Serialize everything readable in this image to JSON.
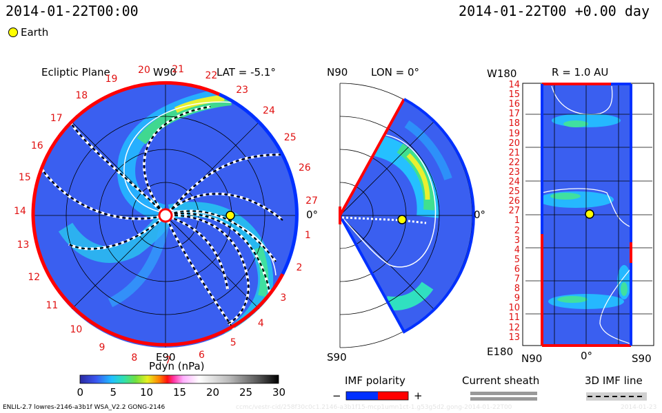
{
  "header": {
    "left_timestamp": "2014-01-22T00:00",
    "right_timestamp": "2014-01-22T00 +0.00 day",
    "earth_label": "Earth"
  },
  "ecliptic": {
    "title": "Ecliptic Plane",
    "top_label": "W90",
    "lat_label": "LAT = -5.1°",
    "angle_label": "0°",
    "bottom_label": "E90",
    "rotation_numbers": [
      "1",
      "2",
      "3",
      "4",
      "5",
      "6",
      "7",
      "8",
      "9",
      "10",
      "11",
      "12",
      "13",
      "14",
      "15",
      "16",
      "17",
      "18",
      "19",
      "20",
      "21",
      "22",
      "23",
      "24",
      "25",
      "26",
      "27"
    ]
  },
  "meridional": {
    "top_label": "N90",
    "lon_label": "LON = 0°",
    "angle_label": "0°",
    "bottom_label": "S90"
  },
  "map": {
    "title": "R = 1.0 AU",
    "top_left_label": "W180",
    "bottom_left_label": "E180",
    "rows": [
      "14",
      "15",
      "16",
      "17",
      "18",
      "19",
      "20",
      "21",
      "22",
      "23",
      "24",
      "25",
      "26",
      "27",
      "1",
      "2",
      "3",
      "4",
      "5",
      "6",
      "7",
      "8",
      "9",
      "10",
      "11",
      "12",
      "13"
    ],
    "x_labels": [
      "N90",
      "0°",
      "S90"
    ]
  },
  "colorbar": {
    "label": "Pdyn (nPa)",
    "ticks": [
      "0",
      "5",
      "10",
      "15",
      "20",
      "25",
      "30"
    ],
    "range": [
      0,
      30
    ]
  },
  "legend": {
    "imf_title": "IMF polarity",
    "imf_minus": "−",
    "imf_plus": "+",
    "sheath_title": "Current sheath",
    "imf3d_title": "3D IMF line"
  },
  "footer": {
    "model_text": "ENLIL-2.7 lowres-2146-a3b1f WSA_V2.2 GONG-2146",
    "watermark_text": "ccmc/vestr-cid/258f30c0c1.2146-a3b1f15-mcp1umn1ct-1.g53g5d2.gong-2014-01-22T00",
    "corner_text": "2014-01-23"
  },
  "colors": {
    "background_field": "#3a5ff0",
    "positive_polarity": "#ff0000",
    "negative_polarity": "#0030ff",
    "earth": "#ffff00"
  }
}
